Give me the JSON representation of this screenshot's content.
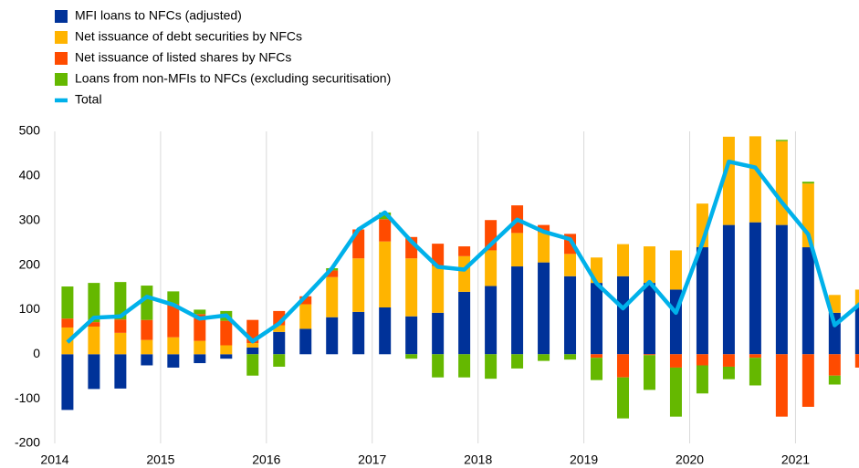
{
  "chart_data": {
    "type": "bar",
    "stacked": true,
    "x": [
      2014.12,
      2014.37,
      2014.62,
      2014.87,
      2015.12,
      2015.37,
      2015.62,
      2015.87,
      2016.12,
      2016.37,
      2016.62,
      2016.87,
      2017.12,
      2017.37,
      2017.62,
      2017.87,
      2018.12,
      2018.37,
      2018.62,
      2018.87,
      2019.12,
      2019.37,
      2019.62,
      2019.87,
      2020.12,
      2020.37,
      2020.62,
      2020.87,
      2021.12,
      2021.37,
      2021.62
    ],
    "series": [
      {
        "name": "MFI loans to NFCs (adjusted)",
        "color": "#003299",
        "values": [
          -125,
          -78,
          -77,
          -25,
          -30,
          -20,
          -10,
          15,
          50,
          57,
          83,
          95,
          105,
          85,
          93,
          140,
          153,
          197,
          206,
          175,
          160,
          175,
          160,
          145,
          240,
          290,
          296,
          290,
          240,
          93,
          110
        ]
      },
      {
        "name": "Net issuance of debt securities by NFCs",
        "color": "#ffb400",
        "values": [
          60,
          62,
          48,
          32,
          38,
          30,
          20,
          10,
          15,
          55,
          90,
          120,
          148,
          130,
          105,
          80,
          80,
          75,
          68,
          50,
          57,
          72,
          82,
          88,
          98,
          198,
          193,
          188,
          143,
          40,
          35
        ]
      },
      {
        "name": "Net issuance of listed shares by NFCs",
        "color": "#ff4b00",
        "values": [
          20,
          10,
          30,
          45,
          75,
          60,
          55,
          52,
          32,
          18,
          15,
          65,
          50,
          48,
          50,
          22,
          68,
          62,
          16,
          45,
          -8,
          -52,
          -2,
          -30,
          -25,
          -28,
          -8,
          -140,
          -118,
          -48,
          -30
        ]
      },
      {
        "name": "Loans from non-MFIs to NFCs (excluding securitisation)",
        "color": "#65b800",
        "values": [
          72,
          88,
          84,
          77,
          28,
          10,
          22,
          -48,
          -28,
          0,
          5,
          0,
          15,
          -10,
          -52,
          -52,
          -55,
          -32,
          -15,
          -12,
          -50,
          -92,
          -78,
          -110,
          -63,
          -28,
          -62,
          3,
          4,
          -20,
          0
        ]
      },
      {
        "name": "Total",
        "color": "#00b1ea",
        "type": "line",
        "values": [
          27,
          82,
          85,
          129,
          111,
          80,
          87,
          29,
          69,
          130,
          193,
          280,
          318,
          253,
          196,
          190,
          246,
          302,
          275,
          258,
          159,
          103,
          162,
          93,
          250,
          432,
          419,
          341,
          269,
          65,
          115
        ]
      }
    ],
    "xlim": [
      2014,
      2021.6
    ],
    "xticks": [
      2014,
      2015,
      2016,
      2017,
      2018,
      2019,
      2020,
      2021
    ],
    "ylim": [
      -200,
      500
    ],
    "yticks": [
      -200,
      -100,
      0,
      100,
      200,
      300,
      400,
      500
    ],
    "grid": "x",
    "legend": "top-left"
  }
}
